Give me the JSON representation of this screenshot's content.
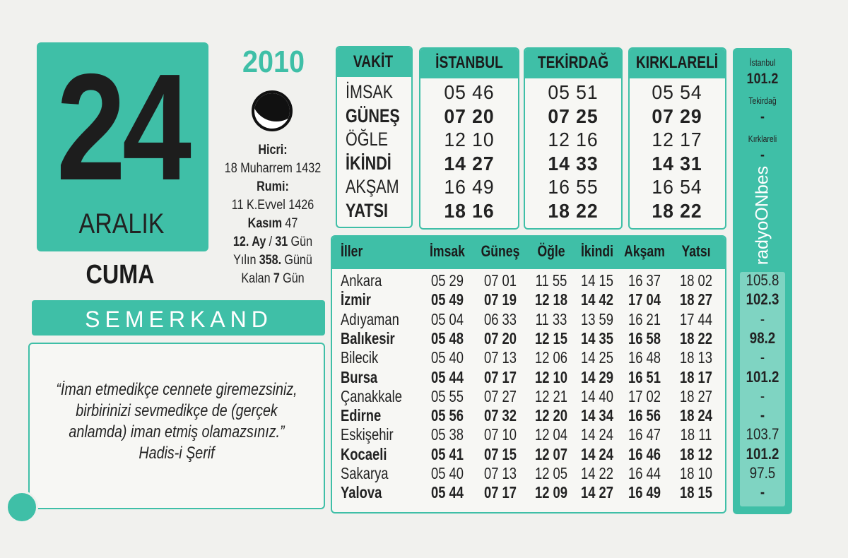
{
  "date": {
    "day": "24",
    "month": "ARALIK",
    "weekday": "CUMA",
    "year": "2010"
  },
  "info": [
    [
      {
        "t": "Hicri:",
        "b": true
      }
    ],
    [
      {
        "t": "18 Muharrem 1432"
      }
    ],
    [
      {
        "t": "Rumi:",
        "b": true
      }
    ],
    [
      {
        "t": "11 K.Evvel 1426"
      }
    ],
    [
      {
        "t": "Kasım",
        "b": true
      },
      {
        "t": "47"
      }
    ],
    [
      {
        "t": "12. Ay",
        "b": true
      },
      {
        "t": "/"
      },
      {
        "t": "31",
        "b": true
      },
      {
        "t": "Gün"
      }
    ],
    [
      {
        "t": "Yılın"
      },
      {
        "t": "358.",
        "b": true
      },
      {
        "t": "Günü"
      }
    ],
    [
      {
        "t": "Kalan"
      },
      {
        "t": "7",
        "b": true
      },
      {
        "t": "Gün"
      }
    ]
  ],
  "brand": "SEMERKAND",
  "quote": {
    "lines": [
      "“İman etmedikçe cennete giremezsiniz,",
      "birbirinizi sevmedikçe de (gerçek",
      "anlamda) iman etmiş olamazsınız.”"
    ],
    "source": "Hadis-i Şerif"
  },
  "times": {
    "header": "VAKİT",
    "rows": [
      "İMSAK",
      "GÜNEŞ",
      "ÖĞLE",
      "İKİNDİ",
      "AKŞAM",
      "YATSI"
    ],
    "bold_rows": [
      1,
      3,
      5
    ],
    "cities": [
      {
        "name": "İSTANBUL",
        "values": [
          "05 46",
          "07 20",
          "12 10",
          "14 27",
          "16 49",
          "18 16"
        ]
      },
      {
        "name": "TEKİRDAĞ",
        "values": [
          "05 51",
          "07 25",
          "12 16",
          "14 33",
          "16 55",
          "18 22"
        ]
      },
      {
        "name": "KIRKLARELİ",
        "values": [
          "05 54",
          "07 29",
          "12 17",
          "14 31",
          "16 54",
          "18 22"
        ]
      }
    ]
  },
  "provinces": {
    "headers": [
      "İller",
      "İmsak",
      "Güneş",
      "Öğle",
      "İkindi",
      "Akşam",
      "Yatsı"
    ],
    "bold_rows": [
      1,
      3,
      5,
      7,
      9,
      11
    ],
    "rows": [
      [
        "Ankara",
        "05 29",
        "07 01",
        "11 55",
        "14 15",
        "16 37",
        "18 02"
      ],
      [
        "İzmir",
        "05 49",
        "07 19",
        "12 18",
        "14 42",
        "17 04",
        "18 27"
      ],
      [
        "Adıyaman",
        "05 04",
        "06 33",
        "11 33",
        "13 59",
        "16 21",
        "17 44"
      ],
      [
        "Balıkesir",
        "05 48",
        "07 20",
        "12 15",
        "14 35",
        "16 58",
        "18 22"
      ],
      [
        "Bilecik",
        "05 40",
        "07 13",
        "12 06",
        "14 25",
        "16 48",
        "18 13"
      ],
      [
        "Bursa",
        "05 44",
        "07 17",
        "12 10",
        "14 29",
        "16 51",
        "18 17"
      ],
      [
        "Çanakkale",
        "05 55",
        "07 27",
        "12 21",
        "14 40",
        "17 02",
        "18 27"
      ],
      [
        "Edirne",
        "05 56",
        "07 32",
        "12 20",
        "14 34",
        "16 56",
        "18 24"
      ],
      [
        "Eskişehir",
        "05 38",
        "07 10",
        "12 04",
        "14 24",
        "16 47",
        "18 11"
      ],
      [
        "Kocaeli",
        "05 41",
        "07 15",
        "12 07",
        "14 24",
        "16 46",
        "18 12"
      ],
      [
        "Sakarya",
        "05 40",
        "07 13",
        "12 05",
        "14 22",
        "16 44",
        "18 10"
      ],
      [
        "Yalova",
        "05 44",
        "07 17",
        "12 09",
        "14 27",
        "16 49",
        "18 15"
      ]
    ]
  },
  "radio": {
    "logo": "radyoONbes",
    "cities": [
      {
        "name": "İstanbul",
        "freq": "101.2"
      },
      {
        "name": "Tekirdağ",
        "freq": "-"
      },
      {
        "name": "Kırklareli",
        "freq": "-"
      }
    ],
    "frequencies": [
      "105.8",
      "102.3",
      "-",
      "98.2",
      "-",
      "101.2",
      "-",
      "-",
      "103.7",
      "101.2",
      "97.5",
      "-"
    ]
  }
}
